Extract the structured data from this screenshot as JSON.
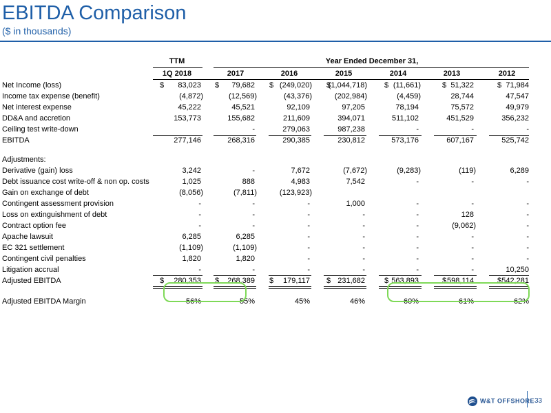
{
  "title": "EBITDA Comparison",
  "subtitle": "($ in thousands)",
  "header": {
    "ttm": "TTM",
    "year_ended": "Year Ended December 31,",
    "columns": [
      "1Q 2018",
      "2017",
      "2016",
      "2015",
      "2014",
      "2013",
      "2012"
    ]
  },
  "rows": [
    {
      "label": "Net Income (loss)",
      "dollar": true,
      "values": [
        "83,023",
        "79,682",
        "(249,020)",
        "(1,044,718)",
        "(11,661)",
        "51,322",
        "71,984"
      ]
    },
    {
      "label": "Income tax expense (benefit)",
      "values": [
        "(4,872)",
        "(12,569)",
        "(43,376)",
        "(202,984)",
        "(4,459)",
        "28,744",
        "47,547"
      ]
    },
    {
      "label": "Net interest expense",
      "values": [
        "45,222",
        "45,521",
        "92,109",
        "97,205",
        "78,194",
        "75,572",
        "49,979"
      ]
    },
    {
      "label": "DD&A and accretion",
      "values": [
        "153,773",
        "155,682",
        "211,609",
        "394,071",
        "511,102",
        "451,529",
        "356,232"
      ]
    },
    {
      "label": "Ceiling test write-down",
      "values": [
        "",
        "-",
        "279,063",
        "987,238",
        "-",
        "-",
        "-"
      ]
    },
    {
      "label": "EBITDA",
      "values": [
        "277,146",
        "268,316",
        "290,385",
        "230,812",
        "573,176",
        "607,167",
        "525,742"
      ]
    },
    {
      "label": "",
      "values": [
        "",
        "",
        "",
        "",
        "",
        "",
        ""
      ]
    },
    {
      "label": "Adjustments:",
      "values": [
        "",
        "",
        "",
        "",
        "",
        "",
        ""
      ]
    },
    {
      "label": "Derivative (gain) loss",
      "values": [
        "3,242",
        "-",
        "7,672",
        "(7,672)",
        "(9,283)",
        "(119)",
        "6,289"
      ]
    },
    {
      "label": "Debt issuance cost write-off & non op. costs",
      "values": [
        "1,025",
        "888",
        "4,983",
        "7,542",
        "-",
        "-",
        "-"
      ]
    },
    {
      "label": "Gain on exchange of debt",
      "values": [
        "(8,056)",
        "(7,811)",
        "(123,923)",
        "",
        "",
        "",
        ""
      ]
    },
    {
      "label": "Contingent assessment provision",
      "values": [
        "-",
        "-",
        "-",
        "1,000",
        "-",
        "-",
        "-"
      ]
    },
    {
      "label": "Loss on extinguishment of debt",
      "values": [
        "-",
        "-",
        "-",
        "-",
        "-",
        "128",
        "-"
      ]
    },
    {
      "label": "Contract option fee",
      "values": [
        "-",
        "-",
        "-",
        "-",
        "-",
        "(9,062)",
        "-"
      ]
    },
    {
      "label": "Apache lawsuit",
      "values": [
        "6,285",
        "6,285",
        "-",
        "-",
        "-",
        "-",
        "-"
      ]
    },
    {
      "label": "EC 321 settlement",
      "values": [
        "(1,109)",
        "(1,109)",
        "-",
        "-",
        "-",
        "-",
        "-"
      ]
    },
    {
      "label": "Contingent civil penalties",
      "values": [
        "1,820",
        "1,820",
        "-",
        "-",
        "-",
        "-",
        "-"
      ]
    },
    {
      "label": "Litigation accrual",
      "values": [
        "-",
        "-",
        "-",
        "-",
        "-",
        "-",
        "10,250"
      ]
    },
    {
      "label": "Adjusted EBITDA",
      "dollar": true,
      "values": [
        "280,353",
        "268,389",
        "179,117",
        "231,682",
        "563,893",
        "598,114",
        "542,281"
      ]
    },
    {
      "label": "",
      "values": [
        "",
        "",
        "",
        "",
        "",
        "",
        ""
      ]
    },
    {
      "label": "Adjusted EBITDA Margin",
      "values": [
        "56%",
        "55%",
        "45%",
        "46%",
        "60%",
        "61%",
        "62%"
      ]
    }
  ],
  "dollar_sign": "$",
  "footer": {
    "logo_text": "W&T OFFSHORE",
    "page_number": "33"
  },
  "colors": {
    "title": "#1f5fa8",
    "highlight": "#7ed957"
  }
}
